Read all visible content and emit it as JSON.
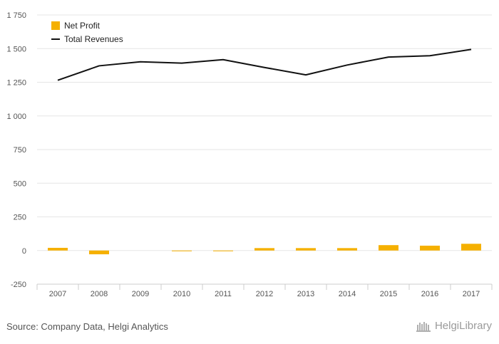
{
  "chart_data": {
    "type": "bar",
    "categories": [
      "2007",
      "2008",
      "2009",
      "2010",
      "2011",
      "2012",
      "2013",
      "2014",
      "2015",
      "2016",
      "2017"
    ],
    "series": [
      {
        "name": "Net Profit",
        "type": "bar",
        "color": "#f5b000",
        "values": [
          20,
          -28,
          0,
          -5,
          -3,
          18,
          18,
          18,
          40,
          36,
          50
        ]
      },
      {
        "name": "Total Revenues",
        "type": "line",
        "color": "#111111",
        "values": [
          1265,
          1372,
          1402,
          1392,
          1418,
          1360,
          1305,
          1378,
          1437,
          1447,
          1494
        ]
      }
    ],
    "ylim": [
      -250,
      1750
    ],
    "yticks": [
      -250,
      0,
      250,
      500,
      750,
      1000,
      1250,
      1500,
      1750
    ],
    "ytick_labels": [
      "-250",
      "0",
      "250",
      "500",
      "750",
      "1 000",
      "1 250",
      "1 500",
      "1 750"
    ],
    "grid": true,
    "legend": "top-left"
  },
  "footer": {
    "source": "Source: Company Data, Helgi Analytics",
    "brand": "HelgiLibrary"
  },
  "colors": {
    "grid": "#e6e6e6",
    "axis": "#cccccc",
    "bar": "#f5b000",
    "line": "#111111"
  }
}
